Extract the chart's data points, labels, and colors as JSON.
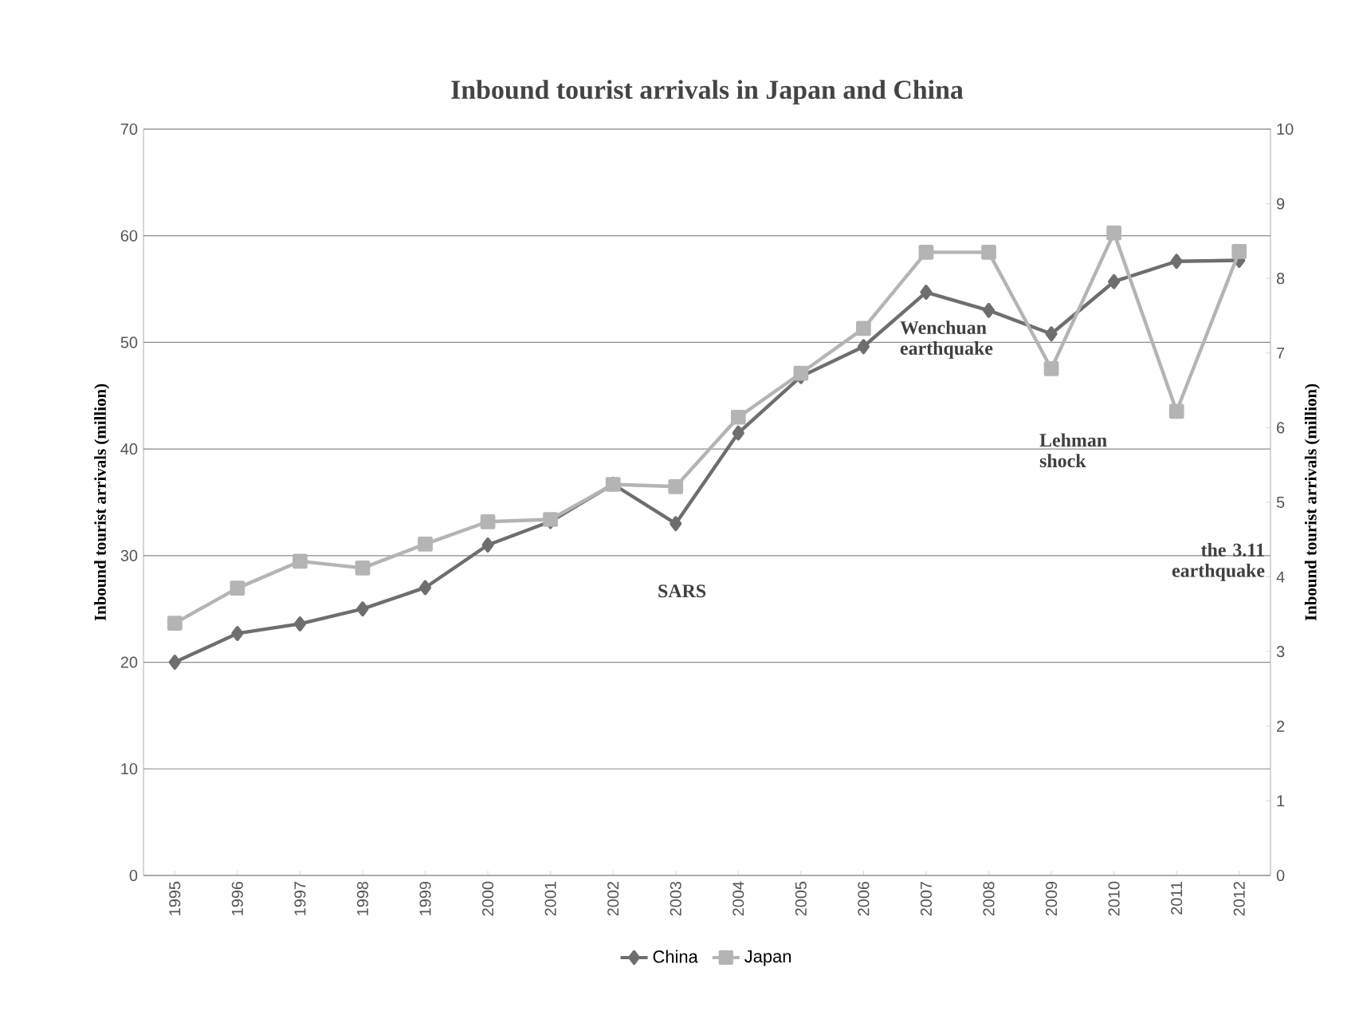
{
  "chart_data": {
    "type": "line",
    "title": "Inbound tourist arrivals in Japan and China",
    "ylabel": "Inbound tourist  arrivals (million)",
    "y2label": "Inbound tourist arrivals (million)",
    "categories": [
      "1995",
      "1996",
      "1997",
      "1998",
      "1999",
      "2000",
      "2001",
      "2002",
      "2003",
      "2004",
      "2005",
      "2006",
      "2007",
      "2008",
      "2009",
      "2010",
      "2011",
      "2012"
    ],
    "series": [
      {
        "name": "China",
        "color": "#6e6e6e",
        "marker": "diamond",
        "values": [
          20.0,
          22.7,
          23.6,
          25.0,
          27.0,
          31.0,
          33.2,
          36.7,
          33.0,
          41.5,
          46.8,
          49.6,
          54.7,
          53.0,
          50.8,
          55.7,
          57.6,
          57.7
        ]
      },
      {
        "name": "Japan",
        "color": "#b4b4b4",
        "marker": "square",
        "axis": "y2",
        "values": [
          3.38,
          3.85,
          4.21,
          4.12,
          4.44,
          4.74,
          4.77,
          5.24,
          5.21,
          6.14,
          6.73,
          7.33,
          8.35,
          8.35,
          6.79,
          8.61,
          6.22,
          8.36
        ]
      }
    ],
    "ylim": [
      0,
      70
    ],
    "yticks": [
      0,
      10,
      20,
      30,
      40,
      50,
      60,
      70
    ],
    "y2lim": [
      0,
      10
    ],
    "y2ticks": [
      0,
      1,
      2,
      3,
      4,
      5,
      6,
      7,
      8,
      9,
      10
    ],
    "grid": "y",
    "legend": "bottom",
    "annotations": [
      "SARS",
      "Wenchuan earthquake",
      "Lehman shock",
      "the 3.11 earthquake"
    ]
  }
}
